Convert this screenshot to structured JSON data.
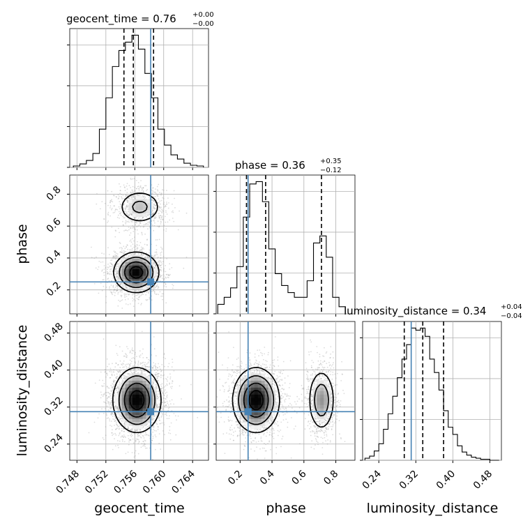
{
  "chart_data": {
    "type": "corner",
    "parameters": [
      "geocent_time",
      "phase",
      "luminosity_distance"
    ],
    "truths": {
      "geocent_time": 0.7582,
      "phase": 0.25,
      "luminosity_distance": 0.31
    },
    "titles": [
      {
        "param": "geocent_time",
        "text": "geocent_time = 0.76",
        "upper": "+0.00",
        "lower": "−0.00"
      },
      {
        "param": "phase",
        "text": "phase = 0.36",
        "upper": "+0.35",
        "lower": "−0.12"
      },
      {
        "param": "luminosity_distance",
        "text": "luminosity_distance = 0.34",
        "upper": "+0.04",
        "lower": "−0.04"
      }
    ],
    "axes": {
      "geocent_time": {
        "range": [
          0.747,
          0.7662
        ],
        "ticks": [
          0.748,
          0.752,
          0.756,
          0.76,
          0.764
        ],
        "tick_labels": [
          "0.748",
          "0.752",
          "0.756",
          "0.760",
          "0.764"
        ],
        "label": "geocent_time"
      },
      "phase": {
        "range": [
          0.05,
          0.92
        ],
        "ticks": [
          0.2,
          0.4,
          0.6,
          0.8
        ],
        "tick_labels": [
          "0.2",
          "0.4",
          "0.6",
          "0.8"
        ],
        "label": "phase"
      },
      "luminosity_distance": {
        "range": [
          0.205,
          0.505
        ],
        "ticks": [
          0.24,
          0.32,
          0.4,
          0.48
        ],
        "tick_labels": [
          "0.24",
          "0.32",
          "0.40",
          "0.48"
        ],
        "label": "luminosity_distance"
      }
    },
    "histograms": {
      "geocent_time": {
        "bins": [
          0.7475,
          0.7484,
          0.7493,
          0.7502,
          0.7511,
          0.752,
          0.7529,
          0.7538,
          0.7547,
          0.7556,
          0.7565,
          0.7574,
          0.7583,
          0.7592,
          0.7601,
          0.761,
          0.7619,
          0.7628,
          0.7637,
          0.7646,
          0.7655
        ],
        "counts": [
          2,
          5,
          10,
          20,
          55,
          100,
          145,
          168,
          180,
          190,
          170,
          135,
          100,
          55,
          32,
          18,
          12,
          6,
          3,
          2
        ],
        "quantiles": [
          0.7545,
          0.7558,
          0.7586
        ]
      },
      "phase": {
        "bins": [
          0.06,
          0.1,
          0.14,
          0.18,
          0.22,
          0.26,
          0.3,
          0.34,
          0.38,
          0.42,
          0.46,
          0.5,
          0.54,
          0.58,
          0.62,
          0.66,
          0.7,
          0.74,
          0.78,
          0.82,
          0.86
        ],
        "counts": [
          8,
          14,
          22,
          40,
          82,
          110,
          112,
          95,
          55,
          34,
          24,
          18,
          14,
          14,
          28,
          60,
          66,
          48,
          14,
          6
        ],
        "quantiles": [
          0.24,
          0.36,
          0.71
        ]
      },
      "luminosity_distance": {
        "bins": [
          0.21,
          0.22,
          0.23,
          0.24,
          0.25,
          0.26,
          0.27,
          0.28,
          0.29,
          0.3,
          0.31,
          0.32,
          0.33,
          0.34,
          0.35,
          0.36,
          0.37,
          0.38,
          0.39,
          0.4,
          0.41,
          0.42,
          0.43,
          0.44,
          0.45,
          0.46,
          0.47,
          0.48,
          0.49,
          0.5
        ],
        "counts": [
          2,
          4,
          9,
          16,
          30,
          45,
          62,
          80,
          98,
          112,
          128,
          126,
          128,
          120,
          98,
          85,
          68,
          48,
          32,
          25,
          14,
          8,
          5,
          3,
          2,
          1,
          1,
          0,
          0
        ],
        "quantiles": [
          0.295,
          0.335,
          0.38
        ]
      }
    },
    "blobs": {
      "geocent_time|phase": [
        {
          "mx": 0.7562,
          "my": 0.31,
          "sx": 0.0016,
          "sy": 0.065,
          "w": 1.0
        },
        {
          "mx": 0.7567,
          "my": 0.72,
          "sx": 0.0017,
          "sy": 0.06,
          "w": 0.42
        }
      ],
      "geocent_time|luminosity_distance": [
        {
          "mx": 0.7563,
          "my": 0.335,
          "sx": 0.0017,
          "sy": 0.036,
          "w": 1.0
        }
      ],
      "phase|luminosity_distance": [
        {
          "mx": 0.3,
          "my": 0.335,
          "sx": 0.075,
          "sy": 0.036,
          "w": 1.0
        },
        {
          "mx": 0.71,
          "my": 0.335,
          "sx": 0.045,
          "sy": 0.036,
          "w": 0.55
        }
      ]
    }
  }
}
